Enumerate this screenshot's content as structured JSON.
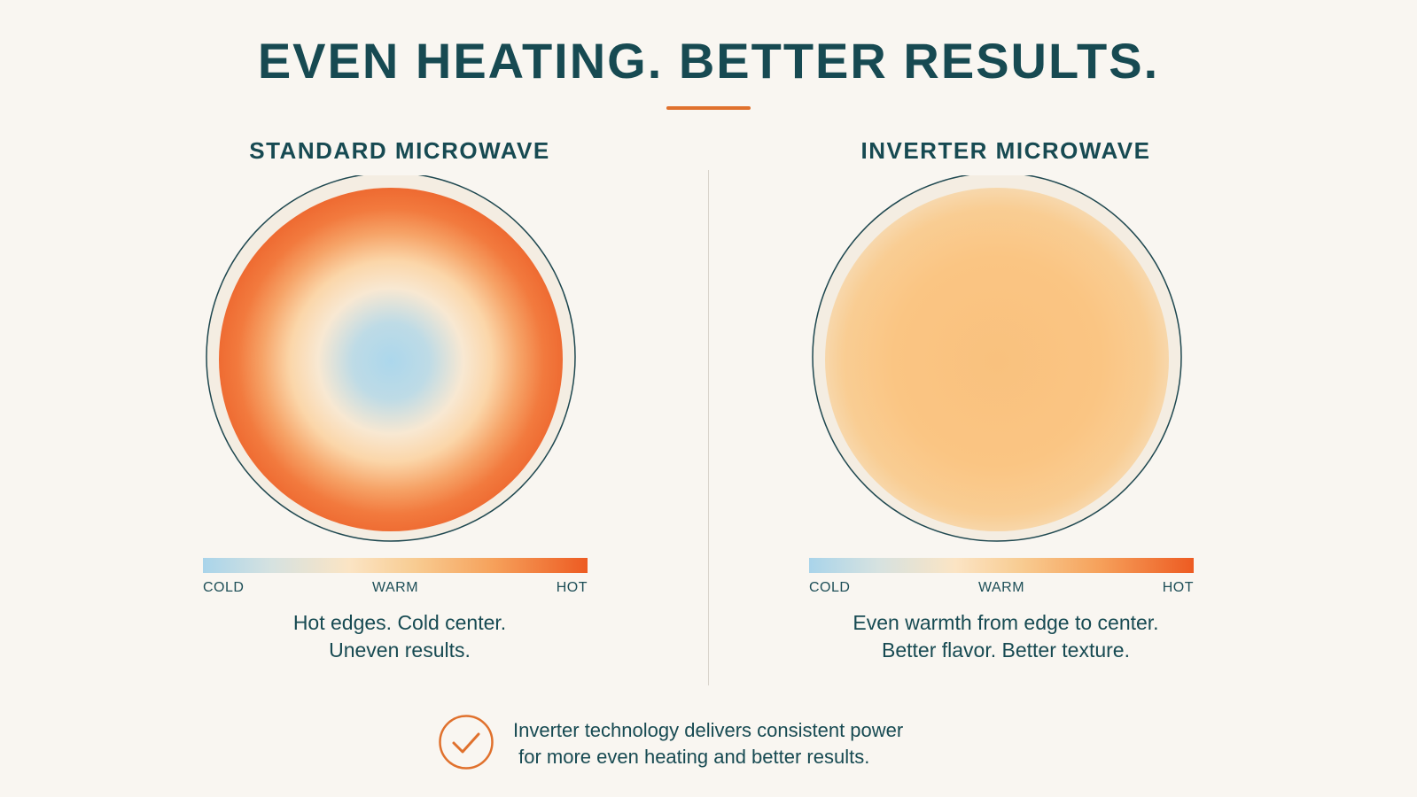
{
  "title": "EVEN HEATING. BETTER RESULTS.",
  "colors": {
    "title": "#174a52",
    "accent": "#e0712d",
    "background": "#f9f6f1",
    "cold": "#a9d4ea",
    "warm": "#f8cc92",
    "hot": "#ed5b22"
  },
  "panels": [
    {
      "title": "STANDARD MICROWAVE",
      "heat_pattern": "hot edges, cold center",
      "scale": {
        "cold": "COLD",
        "warm": "WARM",
        "hot": "HOT"
      },
      "caption_line1": "Hot edges. Cold center.",
      "caption_line2": "Uneven results."
    },
    {
      "title": "INVERTER MICROWAVE",
      "heat_pattern": "even warmth",
      "scale": {
        "cold": "COLD",
        "warm": "WARM",
        "hot": "HOT"
      },
      "caption_line1": "Even warmth from edge to center.",
      "caption_line2": "Better flavor. Better texture."
    }
  ],
  "footer": {
    "icon": "checkmark-circle-icon",
    "line1": "Inverter technology delivers consistent power",
    "line2": " for more even heating and better results."
  }
}
